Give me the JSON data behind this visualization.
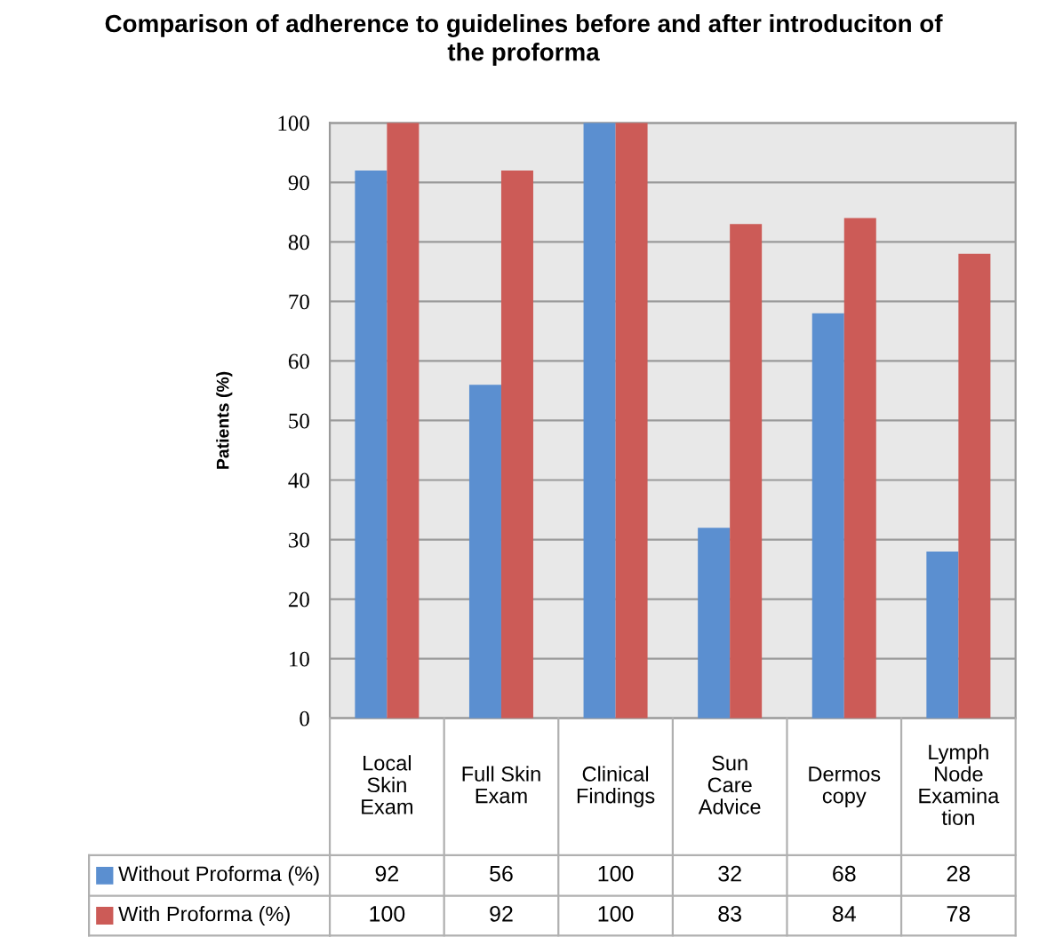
{
  "chart_data": {
    "type": "bar",
    "title": "Comparison of adherence to guidelines before and after introduciton of\nthe proforma",
    "ylabel": "Patients (%)",
    "categories": [
      "Local\nSkin\nExam",
      "Full Skin\nExam",
      "Clinical\nFindings",
      "Sun\nCare\nAdvice",
      "Dermos\ncopy",
      "Lymph\nNode\nExamina\ntion"
    ],
    "series": [
      {
        "name": "Without Proforma (%)",
        "color": "#5b8fd0",
        "values": [
          92,
          56,
          100,
          32,
          68,
          28
        ]
      },
      {
        "name": "With Proforma (%)",
        "color": "#cc5b57",
        "values": [
          100,
          92,
          100,
          83,
          84,
          78
        ]
      }
    ],
    "ylim": [
      0,
      100
    ],
    "yticks": [
      0,
      10,
      20,
      30,
      40,
      50,
      60,
      70,
      80,
      90,
      100
    ],
    "grid": "y",
    "legend": "bottom",
    "data_labels": true
  }
}
